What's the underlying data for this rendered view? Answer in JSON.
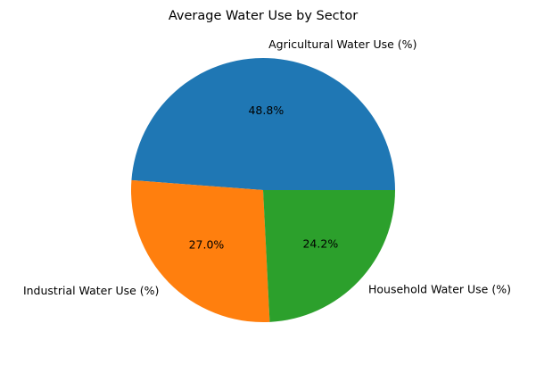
{
  "chart_data": {
    "type": "pie",
    "title": "Average Water Use by Sector",
    "labels": [
      "Agricultural Water Use (%)",
      "Industrial Water Use (%)",
      "Household Water Use (%)"
    ],
    "values": [
      48.8,
      27.0,
      24.2
    ],
    "value_labels": [
      "48.8%",
      "27.0%",
      "24.2%"
    ],
    "colors": [
      "#1f77b4",
      "#ff7f0e",
      "#2ca02c"
    ],
    "start_angle_deg": 0,
    "direction": "counterclockwise",
    "legend": "none"
  }
}
